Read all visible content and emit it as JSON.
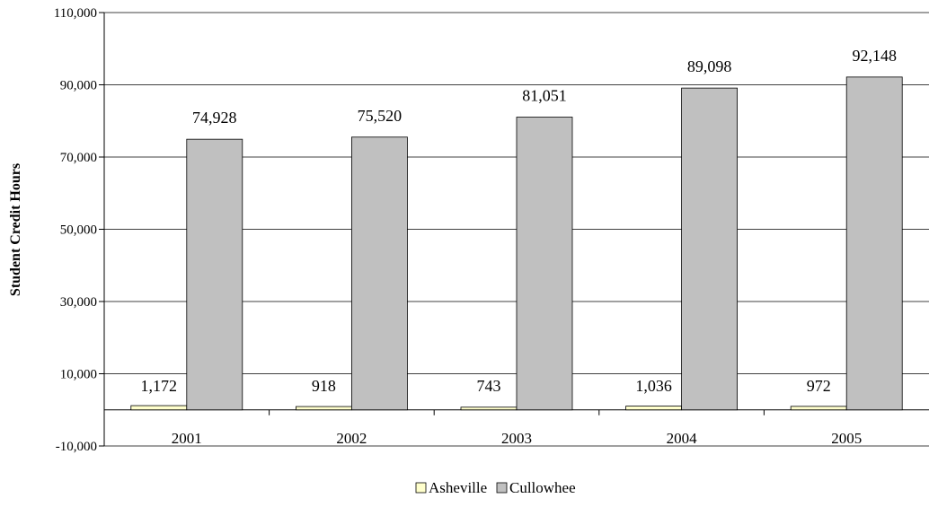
{
  "chart_data": {
    "type": "bar",
    "title": "",
    "xlabel": "",
    "ylabel": "Student Credit Hours",
    "categories": [
      "2001",
      "2002",
      "2003",
      "2004",
      "2005"
    ],
    "series": [
      {
        "name": "Asheville",
        "values": [
          1172,
          918,
          743,
          1036,
          972
        ],
        "labels": [
          "1,172",
          "918",
          "743",
          "1,036",
          "972"
        ],
        "color": "#ffffcc"
      },
      {
        "name": "Cullowhee",
        "values": [
          74928,
          75520,
          81051,
          89098,
          92148
        ],
        "labels": [
          "74,928",
          "75,520",
          "81,051",
          "89,098",
          "92,148"
        ],
        "color": "#c0c0c0"
      }
    ],
    "ylim": [
      -10000,
      110000
    ],
    "yticks": [
      -10000,
      10000,
      30000,
      50000,
      70000,
      90000,
      110000
    ],
    "ytick_labels": [
      "-10,000",
      "10,000",
      "30,000",
      "50,000",
      "70,000",
      "90,000",
      "110,000"
    ],
    "grid": true,
    "legend_position": "bottom"
  }
}
